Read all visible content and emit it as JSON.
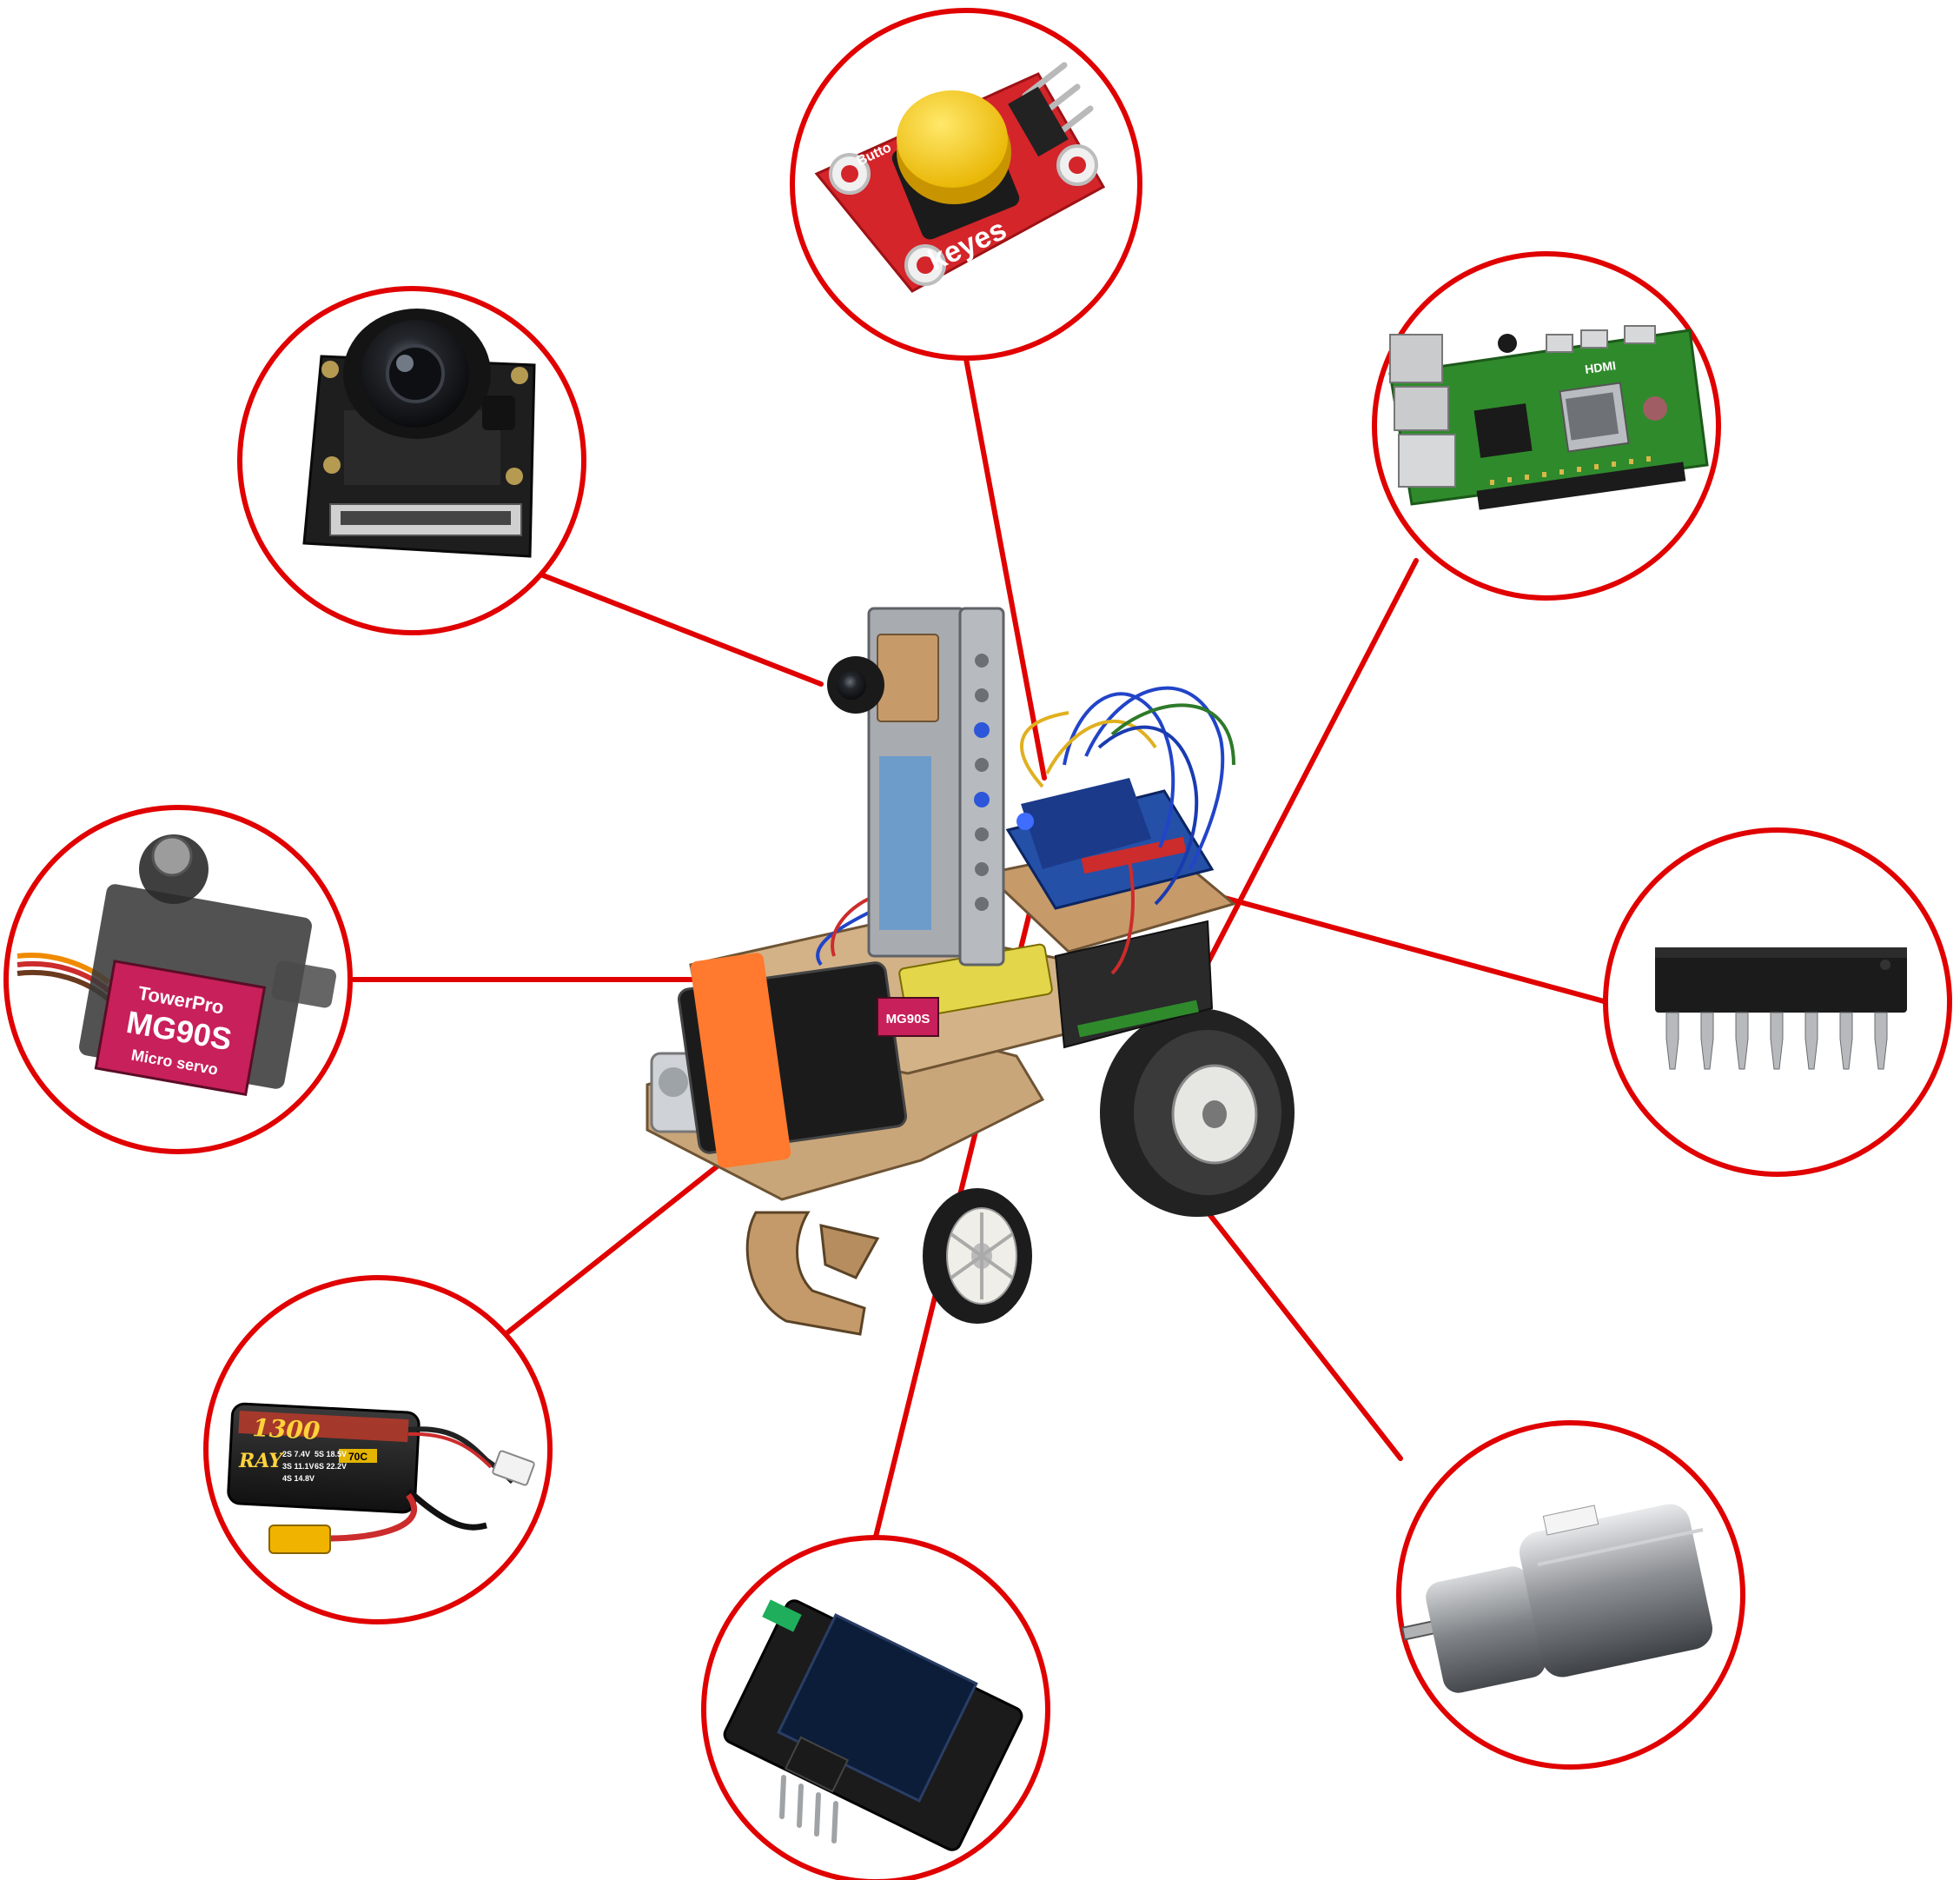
{
  "labels": {
    "button_keyes": "keyes",
    "button_silk": "Butto",
    "servo_brand": "TowerPro",
    "servo_model": "MG90S",
    "servo_type": "Micro servo",
    "battery_capacity": "1300",
    "battery_brand": "RAY",
    "battery_c": "70C",
    "battery_line1": "2S 7.4V",
    "battery_line2": "3S 11.1V",
    "battery_line3": "4S 14.8V",
    "battery_line4": "5S 18.5V",
    "battery_line5": "6S 22.2V",
    "pi_hdmi": "HDMI",
    "robot_servo": "MG90S"
  },
  "colors": {
    "accent": "#e00000",
    "board_green": "#2f8a2c",
    "board_red": "#d4252a",
    "button_yellow": "#f7d21a",
    "servo_pink": "#c8205a",
    "wood": "#c9a67a",
    "velcro": "#ff7a2e",
    "wire_blue": "#2244c8"
  },
  "components": [
    {
      "id": "camera-module",
      "icon": "camera-icon"
    },
    {
      "id": "push-button-module",
      "icon": "push-button-icon"
    },
    {
      "id": "raspberry-pi-board",
      "icon": "raspberry-pi-icon"
    },
    {
      "id": "ic-chip",
      "icon": "dip-ic-icon"
    },
    {
      "id": "dc-gear-motor",
      "icon": "motor-icon"
    },
    {
      "id": "oled-display",
      "icon": "oled-icon"
    },
    {
      "id": "lipo-battery",
      "icon": "battery-icon"
    },
    {
      "id": "micro-servo",
      "icon": "servo-icon"
    }
  ]
}
